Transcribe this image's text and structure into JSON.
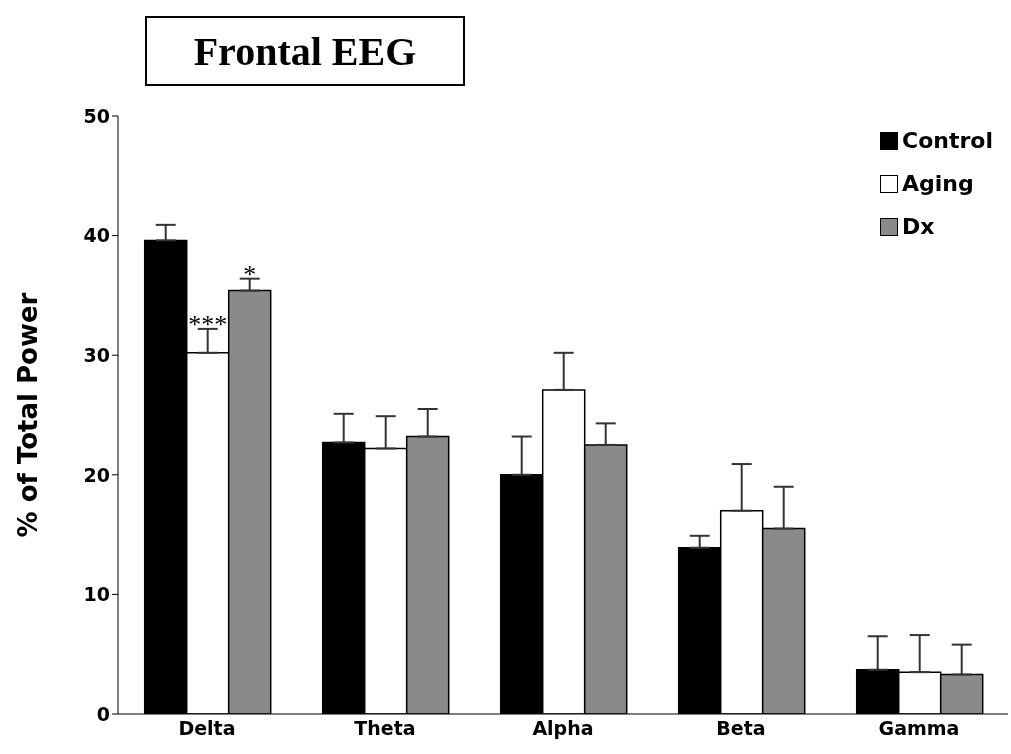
{
  "chart_data": {
    "type": "bar",
    "title": "Frontal EEG",
    "ylabel": "% of Total Power",
    "categories": [
      "Delta",
      "Theta",
      "Alpha",
      "Beta",
      "Gamma"
    ],
    "series": [
      {
        "name": "Control",
        "color": "#000000",
        "values": [
          39.6,
          22.7,
          20.0,
          13.9,
          3.7
        ],
        "errors": [
          [
            39.6,
            40.9
          ],
          [
            22.7,
            25.1
          ],
          [
            20.0,
            23.2
          ],
          [
            13.9,
            14.9
          ],
          [
            3.7,
            6.5
          ]
        ]
      },
      {
        "name": "Aging",
        "color": "#ffffff",
        "values": [
          30.2,
          22.2,
          27.1,
          17.0,
          3.5
        ],
        "errors": [
          [
            30.2,
            32.2
          ],
          [
            22.2,
            24.9
          ],
          [
            27.1,
            30.2
          ],
          [
            17.0,
            20.9
          ],
          [
            3.5,
            6.6
          ]
        ]
      },
      {
        "name": "Dx",
        "color": "#8a8a8a",
        "values": [
          35.4,
          23.2,
          22.5,
          15.5,
          3.3
        ],
        "errors": [
          [
            35.4,
            36.4
          ],
          [
            23.2,
            25.5
          ],
          [
            22.5,
            24.3
          ],
          [
            15.5,
            19.0
          ],
          [
            3.3,
            5.8
          ]
        ]
      }
    ],
    "annotations": [
      {
        "text": "***",
        "x": "Delta",
        "y": 30.2
      },
      "*"
    ],
    "ylim": [
      0,
      50
    ],
    "yticks": [
      0,
      10,
      20,
      30,
      40,
      50
    ],
    "grid": false,
    "legend": "top right"
  }
}
